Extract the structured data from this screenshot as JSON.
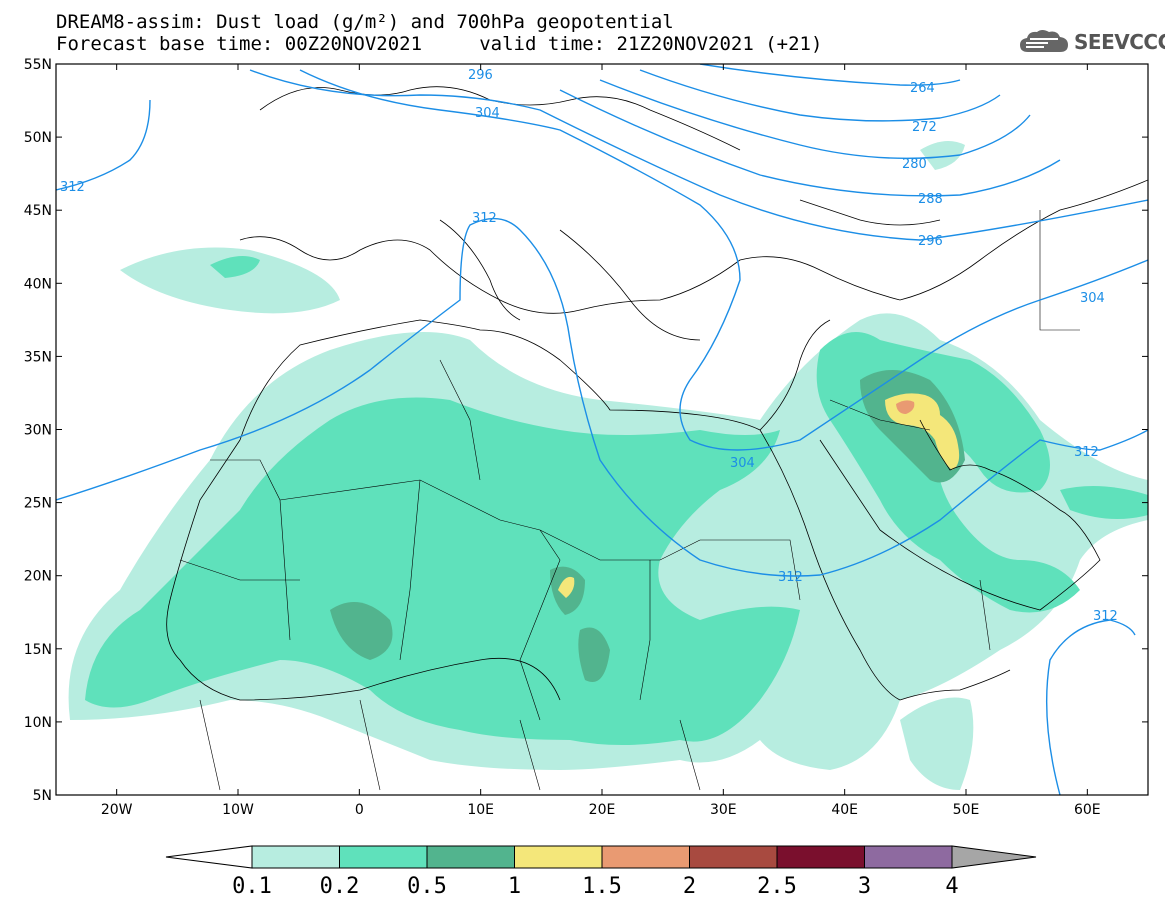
{
  "title": {
    "line1": "DREAM8-assim: Dust load (g/m²) and 700hPa geopotential",
    "line2": "Forecast base time: 00Z20NOV2021     valid time: 21Z20NOV2021 (+21)"
  },
  "logo": {
    "text": "SEEVCCC",
    "icon": "cloud-icon"
  },
  "map": {
    "lon_range": [
      -25,
      65
    ],
    "lat_range": [
      5,
      55
    ],
    "lat_ticks": [
      "55N",
      "50N",
      "45N",
      "40N",
      "35N",
      "30N",
      "25N",
      "20N",
      "15N",
      "10N",
      "5N"
    ],
    "lon_ticks": [
      "20W",
      "10W",
      "0",
      "10E",
      "20E",
      "30E",
      "40E",
      "50E",
      "60E"
    ],
    "isoline_labels": [
      "264",
      "272",
      "280",
      "288",
      "296",
      "304",
      "304",
      "304",
      "312",
      "312",
      "312",
      "312",
      "312",
      "296"
    ],
    "colors": {
      "isoline": "#1c8ee6",
      "land_border": "#000000"
    }
  },
  "colorbar": {
    "labels": [
      "0.1",
      "0.2",
      "0.5",
      "1",
      "1.5",
      "2",
      "2.5",
      "3",
      "4"
    ],
    "colors": [
      "#b7ede0",
      "#5fe1bb",
      "#52b48e",
      "#f4e77a",
      "#e99a72",
      "#a84a40",
      "#7a0f2d",
      "#8e6aa0",
      "#a6a6a6"
    ],
    "under_color": "#ffffff",
    "over_color": "#a6a6a6"
  }
}
